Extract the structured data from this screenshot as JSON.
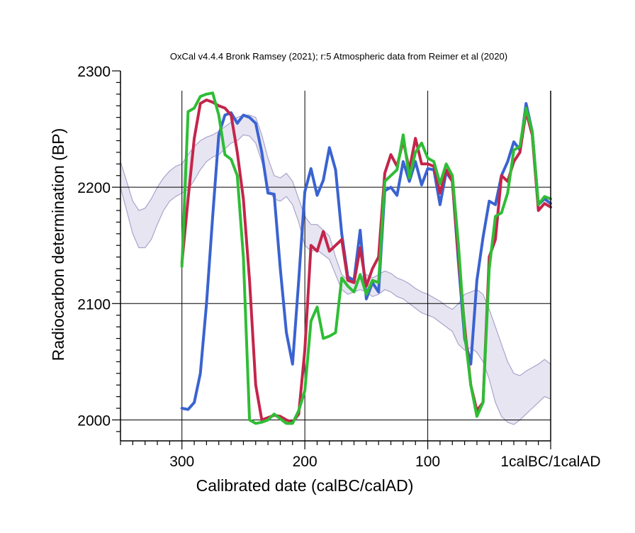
{
  "chart_data": {
    "type": "line",
    "title": "OxCal v4.4.4 Bronk Ramsey (2021); r:5 Atmospheric data from Reimer et al (2020)",
    "xlabel": "Calibrated date (calBC/calAD)",
    "ylabel": "Radiocarbon determination (BP)",
    "xlim": [
      -350,
      0
    ],
    "ylim": [
      1982,
      2300
    ],
    "x_ticks": [
      {
        "value": -300,
        "label": "300"
      },
      {
        "value": -200,
        "label": "200"
      },
      {
        "value": -100,
        "label": "100"
      },
      {
        "value": 0,
        "label": "1calBC/1calAD"
      }
    ],
    "y_ticks": [
      {
        "value": 2300,
        "label": "2300"
      },
      {
        "value": 2200,
        "label": "2200"
      },
      {
        "value": 2100,
        "label": "2100"
      },
      {
        "value": 2000,
        "label": "2000"
      }
    ],
    "grid": true,
    "legend": "none",
    "calibration_band": {
      "color": "#c9c6e0",
      "edge_color": "#a8a4cc",
      "x": [
        -350,
        -345,
        -340,
        -335,
        -330,
        -325,
        -320,
        -315,
        -310,
        -305,
        -300,
        -295,
        -290,
        -285,
        -280,
        -275,
        -270,
        -265,
        -260,
        -255,
        -250,
        -245,
        -240,
        -235,
        -230,
        -225,
        -220,
        -215,
        -210,
        -205,
        -200,
        -195,
        -190,
        -185,
        -180,
        -175,
        -170,
        -165,
        -160,
        -155,
        -150,
        -145,
        -140,
        -135,
        -130,
        -125,
        -120,
        -115,
        -110,
        -105,
        -100,
        -95,
        -90,
        -85,
        -80,
        -75,
        -70,
        -65,
        -60,
        -55,
        -50,
        -45,
        -40,
        -35,
        -30,
        -25,
        -20,
        -15,
        -10,
        -5,
        0
      ],
      "upper": [
        2222,
        2205,
        2188,
        2180,
        2182,
        2190,
        2200,
        2208,
        2214,
        2218,
        2220,
        2228,
        2235,
        2240,
        2243,
        2245,
        2248,
        2252,
        2256,
        2260,
        2262,
        2262,
        2260,
        2245,
        2225,
        2210,
        2208,
        2212,
        2205,
        2190,
        2175,
        2168,
        2168,
        2163,
        2158,
        2140,
        2125,
        2120,
        2118,
        2122,
        2125,
        2122,
        2125,
        2128,
        2126,
        2122,
        2120,
        2117,
        2113,
        2110,
        2108,
        2105,
        2102,
        2098,
        2095,
        2100,
        2108,
        2110,
        2112,
        2108,
        2095,
        2080,
        2065,
        2050,
        2040,
        2038,
        2042,
        2045,
        2048,
        2052,
        2048
      ],
      "lower": [
        2200,
        2180,
        2160,
        2148,
        2148,
        2155,
        2168,
        2180,
        2188,
        2192,
        2195,
        2198,
        2206,
        2215,
        2222,
        2226,
        2228,
        2233,
        2238,
        2240,
        2245,
        2244,
        2238,
        2222,
        2200,
        2190,
        2188,
        2192,
        2185,
        2170,
        2150,
        2145,
        2146,
        2142,
        2138,
        2125,
        2112,
        2108,
        2110,
        2112,
        2110,
        2106,
        2108,
        2112,
        2110,
        2106,
        2104,
        2100,
        2096,
        2092,
        2090,
        2088,
        2084,
        2080,
        2076,
        2065,
        2060,
        2062,
        2058,
        2050,
        2035,
        2015,
        2003,
        1998,
        1996,
        2000,
        2005,
        2010,
        2015,
        2020,
        2018
      ]
    },
    "series": [
      {
        "color": "#3a63d1",
        "x": [
          -300,
          -295,
          -290,
          -285,
          -280,
          -275,
          -270,
          -265,
          -260,
          -255,
          -250,
          -245,
          -240,
          -235,
          -230,
          -225,
          -220,
          -215,
          -210,
          -205,
          -200,
          -195,
          -190,
          -185,
          -180,
          -175,
          -170,
          -165,
          -160,
          -155,
          -150,
          -145,
          -140,
          -135,
          -130,
          -125,
          -120,
          -115,
          -110,
          -105,
          -100,
          -95,
          -90,
          -85,
          -80,
          -75,
          -70,
          -65,
          -60,
          -55,
          -50,
          -45,
          -40,
          -35,
          -30,
          -25,
          -20,
          -15,
          -10,
          -5,
          0
        ],
        "values": [
          2010,
          2009,
          2015,
          2040,
          2100,
          2175,
          2245,
          2262,
          2264,
          2255,
          2262,
          2260,
          2255,
          2230,
          2195,
          2194,
          2130,
          2075,
          2048,
          2120,
          2196,
          2216,
          2193,
          2206,
          2234,
          2215,
          2160,
          2123,
          2120,
          2163,
          2104,
          2118,
          2110,
          2197,
          2200,
          2193,
          2222,
          2205,
          2222,
          2202,
          2216,
          2215,
          2185,
          2213,
          2205,
          2135,
          2070,
          2048,
          2120,
          2157,
          2188,
          2185,
          2210,
          2222,
          2239,
          2232,
          2272,
          2248,
          2185,
          2190,
          2186
        ]
      },
      {
        "color": "#c4254a",
        "x": [
          -300,
          -295,
          -290,
          -285,
          -280,
          -275,
          -270,
          -265,
          -260,
          -255,
          -250,
          -245,
          -240,
          -235,
          -230,
          -225,
          -220,
          -215,
          -210,
          -205,
          -200,
          -195,
          -190,
          -185,
          -180,
          -175,
          -170,
          -165,
          -160,
          -155,
          -150,
          -145,
          -140,
          -135,
          -130,
          -125,
          -120,
          -115,
          -110,
          -105,
          -100,
          -95,
          -90,
          -85,
          -80,
          -75,
          -70,
          -65,
          -60,
          -55,
          -50,
          -45,
          -40,
          -35,
          -30,
          -25,
          -20,
          -15,
          -10,
          -5,
          0
        ],
        "values": [
          2135,
          2190,
          2242,
          2272,
          2275,
          2273,
          2270,
          2268,
          2262,
          2230,
          2190,
          2120,
          2030,
          2000,
          2002,
          2004,
          2003,
          2000,
          1998,
          2005,
          2060,
          2150,
          2145,
          2162,
          2145,
          2150,
          2155,
          2120,
          2118,
          2148,
          2115,
          2130,
          2140,
          2212,
          2228,
          2218,
          2240,
          2215,
          2242,
          2220,
          2220,
          2218,
          2195,
          2215,
          2205,
          2140,
          2080,
          2030,
          2008,
          2015,
          2140,
          2155,
          2210,
          2205,
          2222,
          2230,
          2265,
          2245,
          2180,
          2186,
          2183
        ]
      },
      {
        "color": "#2fbd35",
        "x": [
          -300,
          -295,
          -290,
          -285,
          -280,
          -275,
          -270,
          -265,
          -260,
          -255,
          -250,
          -245,
          -240,
          -235,
          -230,
          -225,
          -220,
          -215,
          -210,
          -205,
          -200,
          -195,
          -190,
          -185,
          -180,
          -175,
          -170,
          -165,
          -160,
          -155,
          -150,
          -145,
          -140,
          -135,
          -130,
          -125,
          -120,
          -115,
          -110,
          -105,
          -100,
          -95,
          -90,
          -85,
          -80,
          -75,
          -70,
          -65,
          -60,
          -55,
          -50,
          -45,
          -40,
          -35,
          -30,
          -25,
          -20,
          -15,
          -10,
          -5,
          0
        ],
        "values": [
          2132,
          2265,
          2268,
          2278,
          2280,
          2281,
          2262,
          2228,
          2224,
          2210,
          2140,
          2000,
          1997,
          1998,
          2000,
          2005,
          2001,
          1997,
          1997,
          2008,
          2025,
          2085,
          2097,
          2070,
          2072,
          2075,
          2122,
          2115,
          2110,
          2125,
          2108,
          2120,
          2118,
          2205,
          2210,
          2215,
          2245,
          2208,
          2230,
          2238,
          2225,
          2222,
          2203,
          2220,
          2210,
          2150,
          2075,
          2030,
          2003,
          2015,
          2130,
          2175,
          2178,
          2195,
          2232,
          2235,
          2268,
          2248,
          2185,
          2192,
          2190
        ]
      }
    ]
  }
}
